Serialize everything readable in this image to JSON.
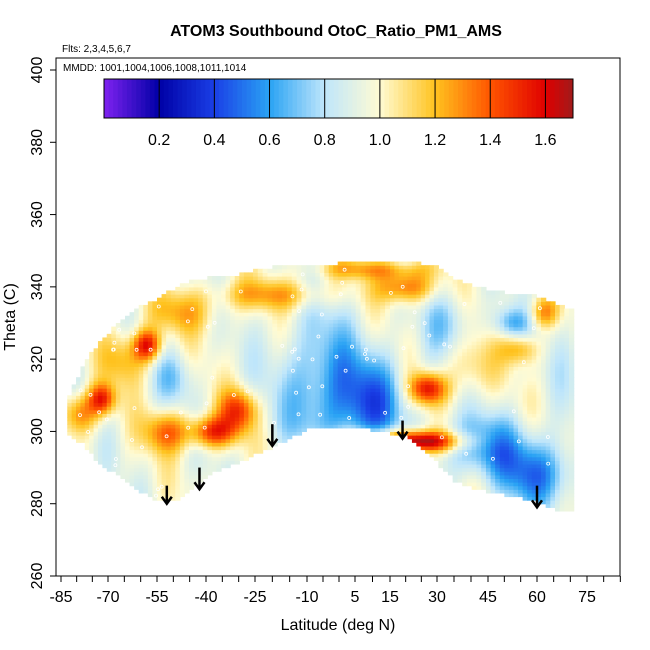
{
  "chart_data": {
    "type": "heatmap",
    "title": "ATOM3 Southbound OtoC_Ratio_PM1_AMS",
    "subtitle_flights": "Flts: 2,3,4,5,6,7",
    "subtitle_dates": "MMDD: 1001,1004,1006,1008,1011,1014",
    "xlabel": "Latitude (deg N)",
    "ylabel": "Theta (C)",
    "xlim": [
      -85,
      85
    ],
    "ylim": [
      260,
      405
    ],
    "x_ticks": [
      -85,
      -70,
      -55,
      -40,
      -25,
      -10,
      5,
      15,
      30,
      45,
      60,
      75
    ],
    "y_ticks": [
      260,
      280,
      300,
      320,
      340,
      360,
      380,
      400
    ],
    "colorbar": {
      "breaks": [
        0.0,
        0.1,
        0.2,
        0.3,
        0.4,
        0.5,
        0.6,
        0.7,
        0.8,
        0.9,
        1.0,
        1.1,
        1.2,
        1.3,
        1.4,
        1.5,
        1.6,
        1.7
      ],
      "labels": [
        "0.2",
        "0.4",
        "0.6",
        "0.8",
        "1.0",
        "1.2",
        "1.4",
        "1.6"
      ],
      "label_values": [
        0.2,
        0.4,
        0.6,
        0.8,
        1.0,
        1.2,
        1.4,
        1.6
      ]
    },
    "colors": {
      "0.0": "#7f22f0",
      "0.2": "#0000a6",
      "0.4": "#1a3fe6",
      "0.6": "#2aa3f4",
      "0.8": "#bfe6fb",
      "1.0": "#fffbd3",
      "1.2": "#ffc31f",
      "1.4": "#ff5500",
      "1.6": "#e00000",
      "1.7": "#a11a1a"
    },
    "coverage": [
      {
        "lat": -83,
        "theta_min": 300,
        "theta_max": 308
      },
      {
        "lat": -78,
        "theta_min": 297,
        "theta_max": 318
      },
      {
        "lat": -72,
        "theta_min": 291,
        "theta_max": 325
      },
      {
        "lat": -66,
        "theta_min": 288,
        "theta_max": 330
      },
      {
        "lat": -60,
        "theta_min": 284,
        "theta_max": 334
      },
      {
        "lat": -55,
        "theta_min": 281,
        "theta_max": 336
      },
      {
        "lat": -50,
        "theta_min": 281,
        "theta_max": 339
      },
      {
        "lat": -45,
        "theta_min": 284,
        "theta_max": 341
      },
      {
        "lat": -40,
        "theta_min": 288,
        "theta_max": 342
      },
      {
        "lat": -30,
        "theta_min": 292,
        "theta_max": 343
      },
      {
        "lat": -20,
        "theta_min": 296,
        "theta_max": 345
      },
      {
        "lat": -10,
        "theta_min": 301,
        "theta_max": 346
      },
      {
        "lat": 0,
        "theta_min": 302,
        "theta_max": 346
      },
      {
        "lat": 10,
        "theta_min": 301,
        "theta_max": 347
      },
      {
        "lat": 20,
        "theta_min": 299,
        "theta_max": 347
      },
      {
        "lat": 30,
        "theta_min": 292,
        "theta_max": 345
      },
      {
        "lat": 35,
        "theta_min": 287,
        "theta_max": 342
      },
      {
        "lat": 40,
        "theta_min": 285,
        "theta_max": 340
      },
      {
        "lat": 50,
        "theta_min": 283,
        "theta_max": 338
      },
      {
        "lat": 60,
        "theta_min": 281,
        "theta_max": 337
      },
      {
        "lat": 66,
        "theta_min": 279,
        "theta_max": 335
      },
      {
        "lat": 71,
        "theta_min": 278,
        "theta_max": 333
      }
    ],
    "features": [
      {
        "lat": -52,
        "theta": 300,
        "value": 1.35,
        "sx": 5,
        "sy": 4
      },
      {
        "lat": -58,
        "theta": 324,
        "value": 1.55,
        "sx": 3,
        "sy": 3
      },
      {
        "lat": -72,
        "theta": 309,
        "value": 1.5,
        "sx": 3,
        "sy": 3
      },
      {
        "lat": -79,
        "theta": 305,
        "value": 1.35,
        "sx": 4,
        "sy": 4
      },
      {
        "lat": -38,
        "theta": 300,
        "value": 1.5,
        "sx": 5,
        "sy": 3
      },
      {
        "lat": -30,
        "theta": 306,
        "value": 1.45,
        "sx": 4,
        "sy": 4
      },
      {
        "lat": -50,
        "theta": 315,
        "value": 0.75,
        "sx": 4,
        "sy": 5
      },
      {
        "lat": -48,
        "theta": 333,
        "value": 1.2,
        "sx": 8,
        "sy": 4
      },
      {
        "lat": -5,
        "theta": 312,
        "value": 0.6,
        "sx": 9,
        "sy": 14
      },
      {
        "lat": 10,
        "theta": 308,
        "value": 0.55,
        "sx": 7,
        "sy": 9
      },
      {
        "lat": 15,
        "theta": 298,
        "value": 1.35,
        "sx": 14,
        "sy": 2
      },
      {
        "lat": 25,
        "theta": 297,
        "value": 1.5,
        "sx": 8,
        "sy": 2
      },
      {
        "lat": 27,
        "theta": 312,
        "value": 1.55,
        "sx": 4,
        "sy": 3
      },
      {
        "lat": 20,
        "theta": 340,
        "value": 1.4,
        "sx": 6,
        "sy": 3
      },
      {
        "lat": 10,
        "theta": 345,
        "value": 1.25,
        "sx": 12,
        "sy": 2
      },
      {
        "lat": 45,
        "theta": 296,
        "value": 0.6,
        "sx": 10,
        "sy": 6
      },
      {
        "lat": 60,
        "theta": 288,
        "value": 0.55,
        "sx": 8,
        "sy": 6
      },
      {
        "lat": 68,
        "theta": 320,
        "value": 0.9,
        "sx": 4,
        "sy": 10
      },
      {
        "lat": 55,
        "theta": 323,
        "value": 1.25,
        "sx": 4,
        "sy": 3
      },
      {
        "lat": 62,
        "theta": 333,
        "value": 1.3,
        "sx": 3,
        "sy": 3
      },
      {
        "lat": 52,
        "theta": 330,
        "value": 0.65,
        "sx": 4,
        "sy": 3
      },
      {
        "lat": 40,
        "theta": 318,
        "value": 1.15,
        "sx": 5,
        "sy": 6
      },
      {
        "lat": -20,
        "theta": 338,
        "value": 1.25,
        "sx": 12,
        "sy": 3
      },
      {
        "lat": -65,
        "theta": 320,
        "value": 1.2,
        "sx": 5,
        "sy": 5
      },
      {
        "lat": 33,
        "theta": 330,
        "value": 0.75,
        "sx": 5,
        "sy": 6
      }
    ],
    "arrows": [
      {
        "lat": -52,
        "theta_top": 285,
        "theta_tip": 280
      },
      {
        "lat": -42,
        "theta_top": 290,
        "theta_tip": 284
      },
      {
        "lat": -20,
        "theta_top": 302,
        "theta_tip": 296
      },
      {
        "lat": 19,
        "theta_top": 303,
        "theta_tip": 298
      },
      {
        "lat": 60,
        "theta_top": 285,
        "theta_tip": 279
      }
    ]
  }
}
